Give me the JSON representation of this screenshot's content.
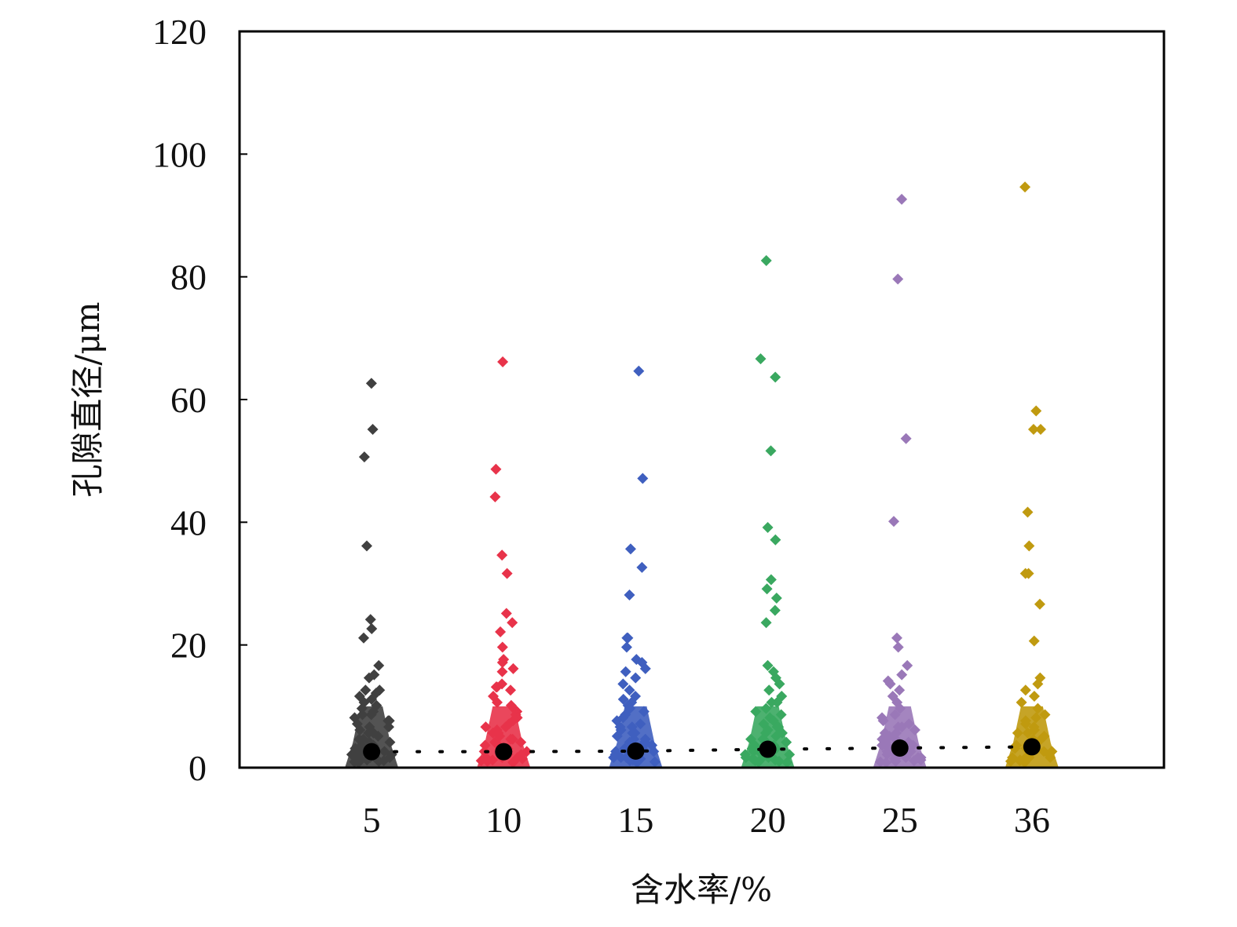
{
  "chart_data": {
    "type": "scatter",
    "title": "",
    "xlabel": "含水率/%",
    "ylabel": "孔隙直径/μm",
    "ylim": [
      0,
      120
    ],
    "yticks": [
      "0",
      "20",
      "40",
      "60",
      "80",
      "100",
      "120"
    ],
    "categories": [
      "5",
      "10",
      "15",
      "20",
      "25",
      "36"
    ],
    "grid": false,
    "legend": "none",
    "mean_marker_color": "#000000",
    "series": [
      {
        "name": "5",
        "color": "#404040",
        "mean": 2.6,
        "values": [
          62,
          54.5,
          50,
          35.5,
          23.5,
          22,
          20.5,
          16,
          14.5,
          14,
          12,
          12,
          11.5,
          11,
          10.5,
          10,
          9.5,
          9,
          8.5,
          8,
          8,
          7.5,
          7,
          7,
          6.5,
          6,
          6,
          5.5,
          5,
          5,
          4.5,
          4,
          4,
          3.5,
          3.5,
          3,
          3,
          2.5,
          2.5,
          2,
          2,
          2,
          1.5,
          1.5,
          1.5,
          1,
          1,
          1,
          0.8,
          0.6,
          0.5,
          0.4,
          0.3,
          0.2
        ]
      },
      {
        "name": "10",
        "color": "#e8334a",
        "mean": 2.6,
        "values": [
          65.5,
          48,
          43.5,
          34,
          31,
          24.5,
          23,
          21.5,
          19,
          17,
          16.5,
          15.5,
          15,
          13,
          12.5,
          12.5,
          12,
          11,
          10,
          9.5,
          9,
          8.5,
          8,
          7.5,
          7,
          6.5,
          6,
          6,
          5.5,
          5,
          5,
          4.5,
          4,
          4,
          3.5,
          3.5,
          3,
          3,
          2.5,
          2.5,
          2,
          2,
          2,
          1.5,
          1.5,
          1,
          1,
          1,
          0.8,
          0.6,
          0.5,
          0.4,
          0.3,
          0.2
        ]
      },
      {
        "name": "15",
        "color": "#3f5fbf",
        "mean": 2.7,
        "values": [
          64,
          46.5,
          35,
          32,
          27.5,
          20.5,
          20.5,
          19,
          17,
          16.5,
          15.5,
          15,
          14,
          13,
          12,
          11,
          10.5,
          10,
          9.5,
          9,
          8.5,
          8,
          7.5,
          7,
          6.5,
          6,
          6,
          5.5,
          5,
          5,
          4.5,
          4,
          4,
          3.5,
          3.5,
          3,
          3,
          2.5,
          2.5,
          2,
          2,
          2,
          1.5,
          1.5,
          1,
          1,
          1,
          0.8,
          0.6,
          0.5,
          0.4,
          0.3,
          0.2
        ]
      },
      {
        "name": "20",
        "color": "#3aa860",
        "mean": 3.0,
        "values": [
          82,
          66,
          63,
          51,
          38.5,
          36.5,
          30,
          28.5,
          27,
          25,
          23,
          16,
          15,
          14,
          13,
          12,
          11,
          10,
          10,
          9,
          8.5,
          8,
          7.5,
          7,
          6.5,
          6,
          6,
          5.5,
          5,
          5,
          4.5,
          4,
          4,
          3.5,
          3.5,
          3,
          3,
          2.5,
          2.5,
          2,
          2,
          2,
          1.5,
          1.5,
          1,
          1,
          1,
          0.8,
          0.6,
          0.5,
          0.4,
          0.3,
          0.2
        ]
      },
      {
        "name": "25",
        "color": "#9a78b8",
        "mean": 3.2,
        "values": [
          92,
          79,
          53,
          39.5,
          20.5,
          19,
          16,
          14.5,
          13.5,
          13,
          12,
          11,
          10,
          9,
          8,
          7.5,
          7,
          6.5,
          6,
          6,
          5.5,
          5,
          5,
          4.5,
          4,
          4,
          3.5,
          3.5,
          3,
          3,
          2.5,
          2.5,
          2,
          2,
          2,
          1.5,
          1.5,
          1,
          1,
          1,
          0.8,
          0.6,
          0.5,
          0.4,
          0.3,
          0.2
        ]
      },
      {
        "name": "36",
        "color": "#c09a10",
        "mean": 3.4,
        "values": [
          94,
          57.5,
          54.5,
          54.5,
          41,
          35.5,
          31,
          31,
          26,
          20,
          14,
          13,
          12,
          11,
          10,
          9,
          8,
          7.5,
          7,
          6.5,
          6,
          5.5,
          5,
          5,
          4.5,
          4,
          4,
          3.5,
          3.5,
          3,
          3,
          2.5,
          2.5,
          2,
          2,
          2,
          1.5,
          1.5,
          1,
          1,
          1,
          0.8,
          0.6,
          0.5,
          0.4,
          0.3,
          0.2
        ]
      }
    ]
  }
}
